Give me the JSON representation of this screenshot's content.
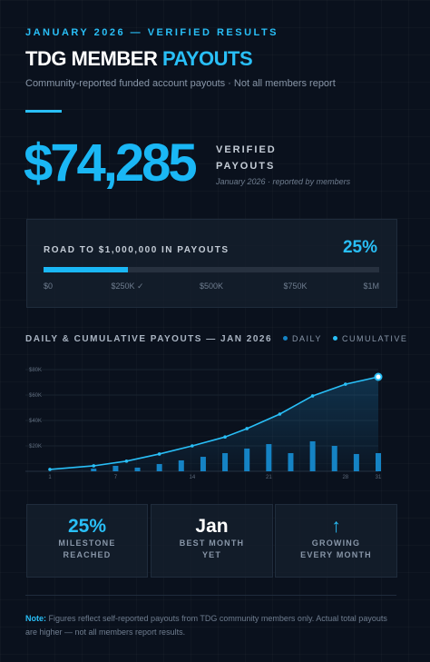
{
  "header": {
    "kicker": "JANUARY 2026 — VERIFIED RESULTS",
    "title_main": "TDG MEMBER",
    "title_accent": "PAYOUTS",
    "subtitle": "Community-reported funded account payouts · Not all members report"
  },
  "hero": {
    "amount": "$74,285",
    "label_1": "VERIFIED",
    "label_2": "PAYOUTS",
    "note": "January 2026 · reported by members"
  },
  "progress": {
    "title": "ROAD TO $1,000,000 IN PAYOUTS",
    "value": 25,
    "value_label": "25%",
    "range": [
      0,
      100
    ],
    "ticks": [
      {
        "value": 0,
        "label": "$0"
      },
      {
        "value": 25,
        "label": "$250K ✓"
      },
      {
        "value": 50,
        "label": "$500K"
      },
      {
        "value": 75,
        "label": "$750K"
      },
      {
        "value": 100,
        "label": "$1M"
      }
    ]
  },
  "chart_data": {
    "type": "bar_line",
    "title": "DAILY & CUMULATIVE PAYOUTS — JAN 2026",
    "xlim": [
      1,
      31
    ],
    "xticks": [
      1,
      7,
      14,
      21,
      28,
      31
    ],
    "ylim": [
      0,
      85000
    ],
    "yticks": [
      {
        "value": 20000,
        "label": "$20K"
      },
      {
        "value": 40000,
        "label": "$40K"
      },
      {
        "value": 60000,
        "label": "$60K"
      },
      {
        "value": 80000,
        "label": "$80K"
      }
    ],
    "series": [
      {
        "name": "DAILY",
        "type": "bar",
        "color": "#1583c4",
        "x": [
          5,
          7,
          9,
          11,
          13,
          15,
          17,
          19,
          21,
          23,
          25,
          27,
          29,
          31
        ],
        "values": [
          2100,
          4300,
          2900,
          5700,
          8600,
          11400,
          14300,
          17900,
          21400,
          14300,
          23600,
          20000,
          13600,
          14300
        ]
      },
      {
        "name": "CUMULATIVE",
        "type": "line",
        "color": "#29bff7",
        "x": [
          1,
          5,
          8,
          11,
          14,
          17,
          19,
          22,
          25,
          28,
          31
        ],
        "values": [
          1500,
          4300,
          8000,
          13600,
          20000,
          27000,
          33600,
          45000,
          59300,
          68500,
          74285
        ]
      }
    ]
  },
  "stats": [
    {
      "value": "25%",
      "label_1": "MILESTONE",
      "label_2": "REACHED"
    },
    {
      "value": "Jan",
      "label_1": "BEST MONTH",
      "label_2": "YET"
    },
    {
      "value": "↑",
      "label_1": "GROWING",
      "label_2": "EVERY MONTH"
    }
  ],
  "footer": {
    "note_label": "Note:",
    "note": "Figures reflect self-reported payouts from TDG community members only. Actual total payouts are higher — not all members report results."
  }
}
